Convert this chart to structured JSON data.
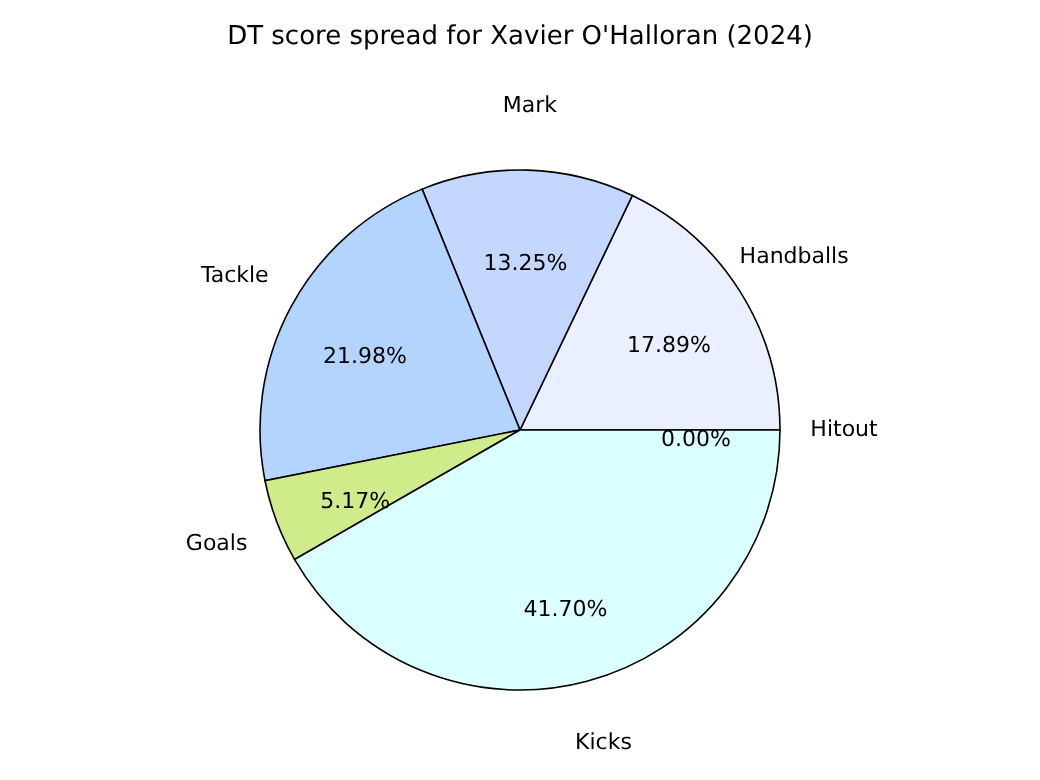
{
  "chart_data": {
    "type": "pie",
    "title": "DT score spread for Xavier O'Halloran (2024)",
    "categories": [
      "Hitout",
      "Handballs",
      "Mark",
      "Tackle",
      "Goals",
      "Kicks"
    ],
    "values": [
      0.0,
      17.89,
      13.25,
      21.98,
      5.17,
      41.7
    ],
    "colors": [
      "#f0f0ff",
      "#eaf0ff",
      "#c4d8ff",
      "#b3d4ff",
      "#d0ec8a",
      "#dbffff"
    ],
    "value_labels": [
      "0.00%",
      "17.89%",
      "13.25%",
      "21.98%",
      "5.17%",
      "41.70%"
    ],
    "legend": false
  }
}
